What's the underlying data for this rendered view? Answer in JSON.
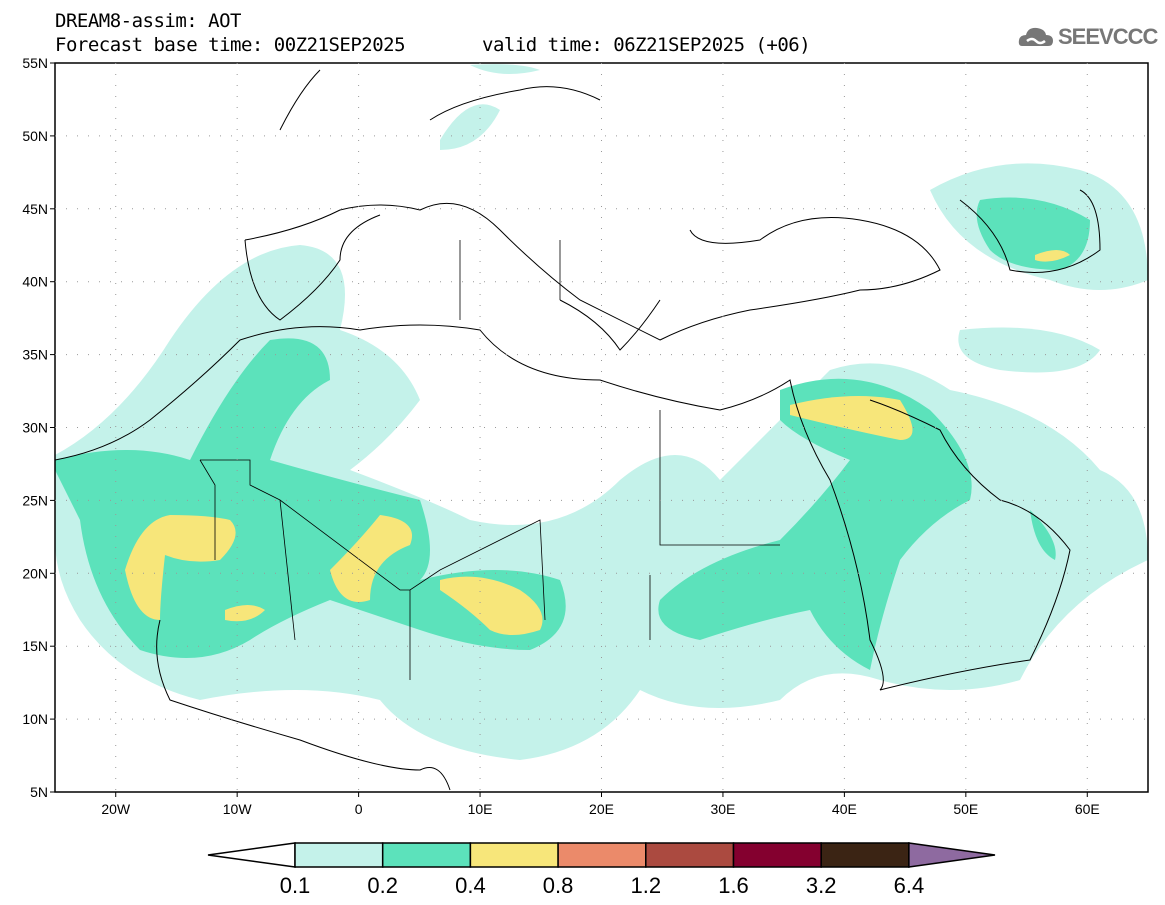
{
  "header": {
    "title": "DREAM8-assim: AOT",
    "base_time": "Forecast base time: 00Z21SEP2025",
    "valid_time": "valid time: 06Z21SEP2025 (+06)"
  },
  "logo": {
    "text": "SEEVCCC"
  },
  "map": {
    "lat_labels": [
      "55N",
      "50N",
      "45N",
      "40N",
      "35N",
      "30N",
      "25N",
      "20N",
      "15N",
      "10N",
      "5N"
    ],
    "lon_labels": [
      "20W",
      "10W",
      "0",
      "10E",
      "20E",
      "30E",
      "40E",
      "50E",
      "60E"
    ]
  },
  "colorbar": {
    "levels": [
      "0.1",
      "0.2",
      "0.4",
      "0.8",
      "1.2",
      "1.6",
      "3.2",
      "6.4"
    ],
    "colors": [
      "#ffffff",
      "#c4f2ea",
      "#5ce2bb",
      "#f7e67a",
      "#eb8a6a",
      "#ab4a40",
      "#84002f",
      "#3b2414",
      "#8e6aa0"
    ]
  }
}
